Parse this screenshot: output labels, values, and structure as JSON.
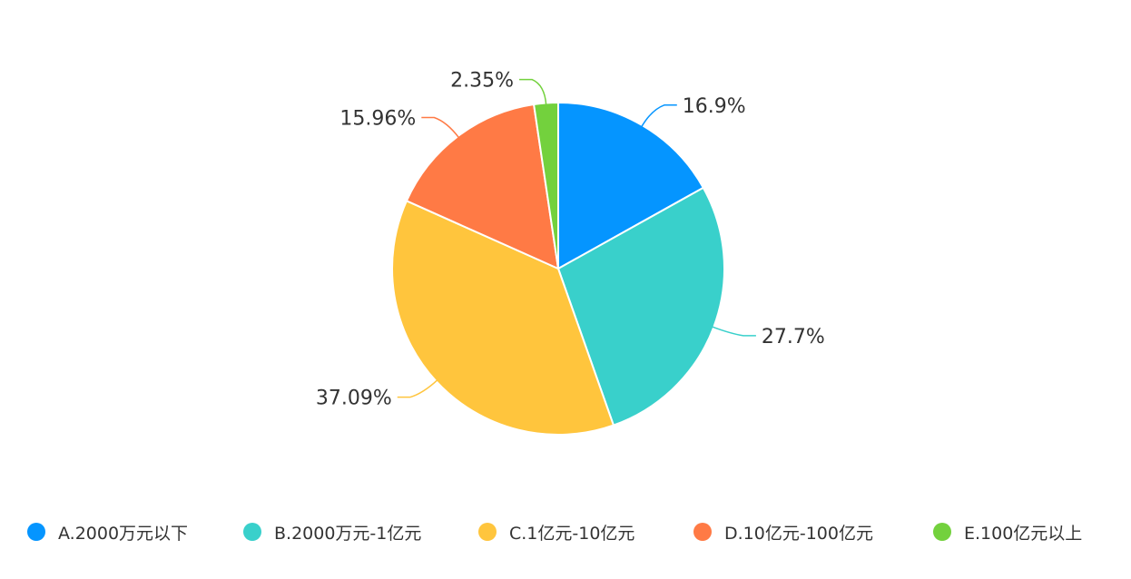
{
  "chart_data": {
    "type": "pie",
    "title": "",
    "categories": [
      "A.2000万元以下",
      "B.2000万元-1亿元",
      "C.1亿元-10亿元",
      "D.10亿元-100亿元",
      "E.100亿元以上"
    ],
    "values": [
      16.9,
      27.7,
      37.09,
      15.96,
      2.35
    ],
    "data_labels": [
      "16.9%",
      "27.7%",
      "37.09%",
      "15.96%",
      "2.35%"
    ],
    "colors": [
      "#0595ff",
      "#39d0cb",
      "#ffc53d",
      "#ff7a45",
      "#73d13d"
    ],
    "start_angle": "12 o'clock",
    "direction": "clockwise",
    "legend_position": "bottom"
  }
}
